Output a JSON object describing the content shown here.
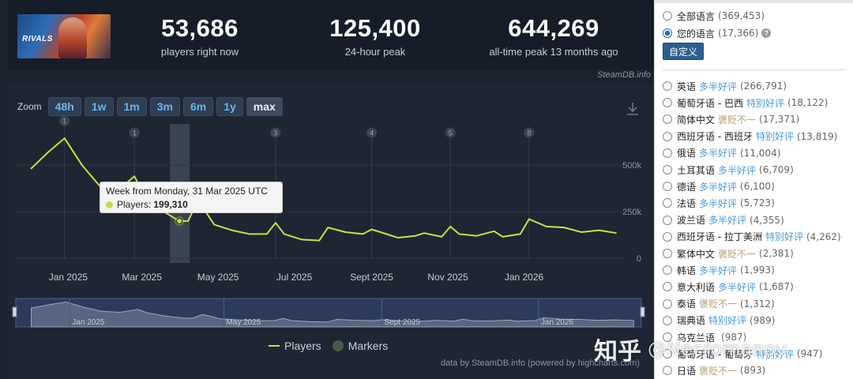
{
  "stats": [
    {
      "value": "53,686",
      "label": "players right now"
    },
    {
      "value": "125,400",
      "label": "24-hour peak"
    },
    {
      "value": "644,269",
      "label": "all-time peak 13 months ago"
    }
  ],
  "game_thumb_text": "RIVALS",
  "credit_top": "SteamDB.info",
  "zoom": {
    "label": "Zoom",
    "buttons": [
      "48h",
      "1w",
      "1m",
      "3m",
      "6m",
      "1y",
      "max"
    ],
    "active": "max"
  },
  "tooltip": {
    "title": "Week from Monday, 31 Mar 2025 UTC",
    "series_label": "Players:",
    "value": "199,310"
  },
  "legend": {
    "players": "Players",
    "markers": "Markers"
  },
  "credit_bottom": "data by SteamDB.info (powered by highcharts.com)",
  "chart_data": {
    "type": "line",
    "title": "",
    "xlabel": "",
    "ylabel": "",
    "x_tick_labels": [
      "Jan 2025",
      "Mar 2025",
      "May 2025",
      "Jul 2025",
      "Sept 2025",
      "Nov 2025",
      "Jan 2026"
    ],
    "y_tick_labels": [
      "0",
      "250k",
      "500k"
    ],
    "ylim": [
      0,
      700000
    ],
    "series": [
      {
        "name": "Players",
        "color": "#c8e042",
        "points": [
          [
            "2024-12-02",
            480000
          ],
          [
            "2024-12-16",
            570000
          ],
          [
            "2024-12-29",
            644269
          ],
          [
            "2025-01-12",
            500000
          ],
          [
            "2025-01-26",
            390000
          ],
          [
            "2025-02-09",
            360000
          ],
          [
            "2025-02-23",
            440000
          ],
          [
            "2025-03-02",
            350000
          ],
          [
            "2025-03-16",
            260000
          ],
          [
            "2025-03-31",
            199310
          ],
          [
            "2025-04-07",
            200000
          ],
          [
            "2025-04-14",
            300000
          ],
          [
            "2025-04-21",
            250000
          ],
          [
            "2025-04-28",
            180000
          ],
          [
            "2025-05-12",
            150000
          ],
          [
            "2025-05-26",
            130000
          ],
          [
            "2025-06-09",
            130000
          ],
          [
            "2025-06-16",
            190000
          ],
          [
            "2025-06-23",
            130000
          ],
          [
            "2025-07-07",
            100000
          ],
          [
            "2025-07-21",
            95000
          ],
          [
            "2025-07-28",
            165000
          ],
          [
            "2025-08-11",
            140000
          ],
          [
            "2025-08-25",
            130000
          ],
          [
            "2025-09-01",
            155000
          ],
          [
            "2025-09-15",
            125000
          ],
          [
            "2025-09-22",
            110000
          ],
          [
            "2025-10-06",
            120000
          ],
          [
            "2025-10-13",
            135000
          ],
          [
            "2025-10-27",
            115000
          ],
          [
            "2025-11-03",
            170000
          ],
          [
            "2025-11-10",
            130000
          ],
          [
            "2025-11-24",
            120000
          ],
          [
            "2025-12-08",
            145000
          ],
          [
            "2025-12-15",
            115000
          ],
          [
            "2025-12-29",
            130000
          ],
          [
            "2026-01-05",
            210000
          ],
          [
            "2026-01-19",
            170000
          ],
          [
            "2026-02-02",
            165000
          ],
          [
            "2026-02-16",
            140000
          ],
          [
            "2026-03-02",
            150000
          ],
          [
            "2026-03-16",
            135000
          ]
        ]
      }
    ],
    "markers": [
      {
        "date": "2024-12-29",
        "label": "1"
      },
      {
        "date": "2025-02-23",
        "label": "1"
      },
      {
        "date": "2025-06-16",
        "label": "3"
      },
      {
        "date": "2025-09-01",
        "label": "4"
      },
      {
        "date": "2025-11-03",
        "label": "5"
      },
      {
        "date": "2026-01-05",
        "label": "8"
      }
    ],
    "highlight_date": "2025-03-31",
    "navigator_labels": [
      "Jan 2025",
      "May 2025",
      "Sept 2025",
      "Jan 2026"
    ],
    "colors": {
      "line": "#c8e042",
      "background": "#1e2634"
    }
  },
  "languages": {
    "top_options": [
      {
        "name": "全部语言",
        "count": "(369,453)",
        "selected": false
      },
      {
        "name": "您的语言",
        "count": "(17,366)",
        "selected": true,
        "help": "?"
      }
    ],
    "custom_button": "自定义",
    "list": [
      {
        "name": "英语",
        "review": "多半好评",
        "review_color": "#4c9bd9",
        "count": "(266,791)"
      },
      {
        "name": "葡萄牙语 - 巴西",
        "review": "特别好评",
        "review_color": "#4c9bd9",
        "count": "(18,122)"
      },
      {
        "name": "简体中文",
        "review": "褒贬不一",
        "review_color": "#b9a074",
        "count": "(17,371)"
      },
      {
        "name": "西班牙语 - 西班牙",
        "review": "特别好评",
        "review_color": "#4c9bd9",
        "count": "(13,819)"
      },
      {
        "name": "俄语",
        "review": "多半好评",
        "review_color": "#4c9bd9",
        "count": "(11,004)"
      },
      {
        "name": "土耳其语",
        "review": "多半好评",
        "review_color": "#4c9bd9",
        "count": "(6,709)"
      },
      {
        "name": "德语",
        "review": "多半好评",
        "review_color": "#4c9bd9",
        "count": "(6,100)"
      },
      {
        "name": "法语",
        "review": "多半好评",
        "review_color": "#4c9bd9",
        "count": "(5,723)"
      },
      {
        "name": "波兰语",
        "review": "多半好评",
        "review_color": "#4c9bd9",
        "count": "(4,355)"
      },
      {
        "name": "西班牙语 - 拉丁美洲",
        "review": "特别好评",
        "review_color": "#4c9bd9",
        "count": "(4,262)"
      },
      {
        "name": "繁体中文",
        "review": "褒贬不一",
        "review_color": "#b9a074",
        "count": "(2,381)"
      },
      {
        "name": "韩语",
        "review": "多半好评",
        "review_color": "#4c9bd9",
        "count": "(1,993)"
      },
      {
        "name": "意大利语",
        "review": "多半好评",
        "review_color": "#4c9bd9",
        "count": "(1,687)"
      },
      {
        "name": "泰语",
        "review": "褒贬不一",
        "review_color": "#b9a074",
        "count": "(1,312)"
      },
      {
        "name": "瑞典语",
        "review": "特别好评",
        "review_color": "#4c9bd9",
        "count": "(989)"
      },
      {
        "name": "乌克兰语",
        "review": "",
        "review_color": "#4c9bd9",
        "count": "(987)"
      },
      {
        "name": "葡萄牙语 - 葡萄牙",
        "review": "特别好评",
        "review_color": "#4c9bd9",
        "count": "(947)"
      },
      {
        "name": "日语",
        "review": "褒贬不一",
        "review_color": "#b9a074",
        "count": "(893)"
      }
    ]
  },
  "watermark": {
    "logo": "知乎",
    "user": "@Necromanov"
  }
}
